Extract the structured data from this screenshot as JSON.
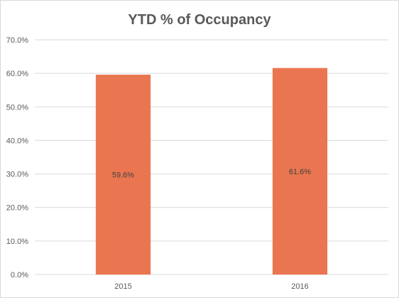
{
  "chart_data": {
    "type": "bar",
    "title": "YTD % of Occupancy",
    "xlabel": "",
    "ylabel": "",
    "categories": [
      "2015",
      "2016"
    ],
    "series": [
      {
        "values": [
          59.6,
          61.6
        ],
        "data_labels": [
          "59.6%",
          "61.6%"
        ]
      }
    ],
    "ylim": [
      0,
      70
    ],
    "yticks": [
      0,
      10,
      20,
      30,
      40,
      50,
      60,
      70
    ],
    "ytick_labels": [
      "0.0%",
      "10.0%",
      "20.0%",
      "30.0%",
      "40.0%",
      "50.0%",
      "60.0%",
      "70.0%"
    ],
    "grid": true,
    "legend": "none",
    "bar_color": "#e97650",
    "grid_color": "#d9d9d9"
  }
}
